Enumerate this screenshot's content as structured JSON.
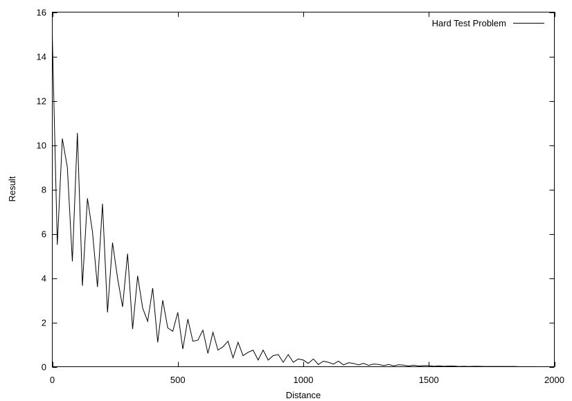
{
  "chart_data": {
    "type": "line",
    "xlabel": "Distance",
    "ylabel": "Result",
    "xlim": [
      0,
      2000
    ],
    "ylim": [
      0,
      16
    ],
    "x_ticks": [
      0,
      500,
      1000,
      1500,
      2000
    ],
    "y_ticks": [
      0,
      2,
      4,
      6,
      8,
      10,
      12,
      14,
      16
    ],
    "grid": false,
    "legend": {
      "position": "top-right"
    },
    "series": [
      {
        "name": "Hard Test Problem",
        "color": "#000000",
        "x": [
          0,
          20,
          40,
          60,
          80,
          100,
          120,
          140,
          160,
          180,
          200,
          220,
          240,
          260,
          280,
          300,
          320,
          340,
          360,
          380,
          400,
          420,
          440,
          460,
          480,
          500,
          520,
          540,
          560,
          580,
          600,
          620,
          640,
          660,
          680,
          700,
          720,
          740,
          760,
          780,
          800,
          820,
          840,
          860,
          880,
          900,
          920,
          940,
          960,
          980,
          1000,
          1020,
          1040,
          1060,
          1080,
          1100,
          1120,
          1140,
          1160,
          1180,
          1200,
          1220,
          1240,
          1260,
          1280,
          1300,
          1320,
          1340,
          1360,
          1380,
          1400,
          1420,
          1440,
          1460,
          1480,
          1500,
          1520,
          1540,
          1560,
          1580,
          1600,
          1620,
          1640,
          1660,
          1680,
          1700,
          1720,
          1740,
          1760,
          1780,
          1800,
          1820,
          1840,
          1860,
          1880,
          1900,
          1920,
          1940,
          1960,
          1980,
          2000
        ],
        "values": [
          15.0,
          5.5,
          10.3,
          9.0,
          4.75,
          10.55,
          3.65,
          7.6,
          6.1,
          3.6,
          7.35,
          2.45,
          5.6,
          4.0,
          2.7,
          5.1,
          1.7,
          4.1,
          2.65,
          2.05,
          3.55,
          1.1,
          3.0,
          1.75,
          1.6,
          2.45,
          0.8,
          2.15,
          1.15,
          1.2,
          1.65,
          0.6,
          1.55,
          0.75,
          0.9,
          1.15,
          0.4,
          1.1,
          0.5,
          0.65,
          0.75,
          0.3,
          0.75,
          0.3,
          0.5,
          0.55,
          0.2,
          0.55,
          0.2,
          0.35,
          0.3,
          0.15,
          0.35,
          0.1,
          0.25,
          0.2,
          0.12,
          0.25,
          0.08,
          0.18,
          0.15,
          0.08,
          0.15,
          0.06,
          0.12,
          0.1,
          0.05,
          0.1,
          0.04,
          0.09,
          0.07,
          0.03,
          0.07,
          0.03,
          0.05,
          0.05,
          0.02,
          0.04,
          0.02,
          0.03,
          0.03,
          0.01,
          0.02,
          0.01,
          0.02,
          0.02,
          0.01,
          0.01,
          0.01,
          0.01,
          0.01,
          0.01,
          0.01,
          0.005,
          0.005,
          0.005,
          0.005,
          0.0,
          0.0,
          0.0,
          0.0
        ]
      }
    ]
  }
}
